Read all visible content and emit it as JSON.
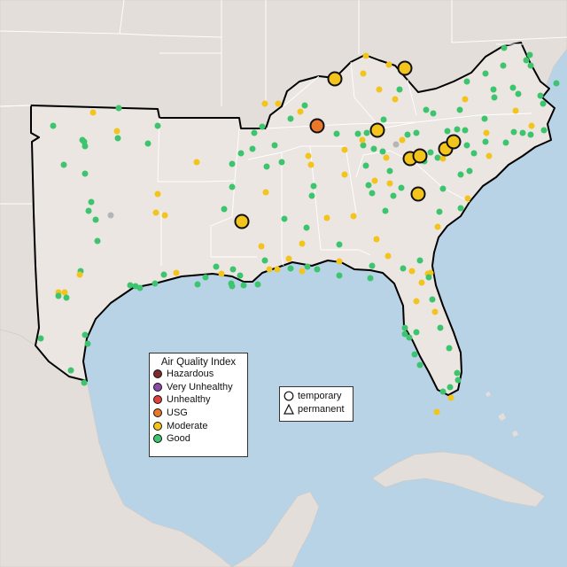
{
  "legend": {
    "title": "Air Quality Index",
    "categories": [
      {
        "label": "Hazardous",
        "color": "#7e2a2a"
      },
      {
        "label": "Very Unhealthy",
        "color": "#8f4aa8"
      },
      {
        "label": "Unhealthy",
        "color": "#e0413a"
      },
      {
        "label": "USG",
        "color": "#e9782a"
      },
      {
        "label": "Moderate",
        "color": "#f2c41c"
      },
      {
        "label": "Good",
        "color": "#3cc46e"
      }
    ]
  },
  "monitor_types": [
    {
      "label": "temporary",
      "shape": "circle"
    },
    {
      "label": "permanent",
      "shape": "triangle"
    }
  ],
  "colors": {
    "ocean": "#b9d3e6",
    "land": "#ebe6e2",
    "outside_land": "#e3ded9",
    "border": "#000000",
    "inactive_station": "#b5b5b5"
  },
  "highlighted_stations": [
    {
      "category": "USG",
      "type": "temporary",
      "lat": 36.1,
      "lon": -87.0
    },
    {
      "category": "Moderate",
      "type": "temporary",
      "lat": 38.3,
      "lon": -85.7
    },
    {
      "category": "Moderate",
      "type": "temporary",
      "lat": 38.6,
      "lon": -82.6
    },
    {
      "category": "Moderate",
      "type": "temporary",
      "lat": 35.9,
      "lon": -84.0
    },
    {
      "category": "Moderate",
      "type": "temporary",
      "lat": 35.0,
      "lon": -82.4
    },
    {
      "category": "Moderate",
      "type": "temporary",
      "lat": 35.1,
      "lon": -81.9
    },
    {
      "category": "Moderate",
      "type": "temporary",
      "lat": 35.4,
      "lon": -80.9
    },
    {
      "category": "Moderate",
      "type": "temporary",
      "lat": 35.6,
      "lon": -80.5
    },
    {
      "category": "Moderate",
      "type": "temporary",
      "lat": 33.8,
      "lon": -82.0
    },
    {
      "category": "Moderate",
      "type": "temporary",
      "lat": 32.4,
      "lon": -90.3
    }
  ]
}
